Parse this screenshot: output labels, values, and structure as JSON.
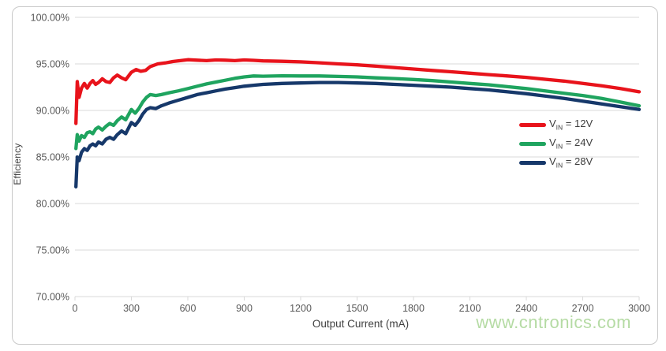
{
  "page": {
    "background": "#ffffff",
    "card_border_color": "#c9c9c9",
    "gridline_color": "#d9d9d9",
    "tick_label_color": "#595959",
    "axis_title_color": "#404040"
  },
  "watermark": {
    "text": "www.cntronics.com",
    "color": "#b5dba4"
  },
  "chart_data": {
    "type": "line",
    "title": "",
    "xlabel": "Output Current (mA)",
    "ylabel": "Efficiency",
    "xlim": [
      0,
      3000
    ],
    "ylim": [
      70,
      100
    ],
    "grid": "horizontal",
    "legend_position": "inside-right-middle",
    "x_ticks": [
      0,
      300,
      600,
      900,
      1200,
      1500,
      1800,
      2100,
      2400,
      2700,
      3000
    ],
    "x_tick_labels": [
      "0",
      "300",
      "600",
      "900",
      "1200",
      "1500",
      "1800",
      "2100",
      "2400",
      "2700",
      "3000"
    ],
    "y_ticks": [
      100,
      95,
      90,
      85,
      80,
      75,
      70
    ],
    "y_tick_labels": [
      "100.00%",
      "95.00%",
      "90.00%",
      "85.00%",
      "80.00%",
      "75.00%",
      "70.00%"
    ],
    "series": [
      {
        "name": "VIN = 12V",
        "legend_pre": "V",
        "legend_sub": "IN",
        "legend_post": " = 12V",
        "color": "#e8131b",
        "points": [
          [
            5,
            88.6
          ],
          [
            12,
            93.1
          ],
          [
            22,
            91.4
          ],
          [
            35,
            92.4
          ],
          [
            50,
            92.9
          ],
          [
            65,
            92.4
          ],
          [
            80,
            92.9
          ],
          [
            95,
            93.2
          ],
          [
            110,
            92.8
          ],
          [
            125,
            93.0
          ],
          [
            145,
            93.4
          ],
          [
            165,
            93.1
          ],
          [
            185,
            93.0
          ],
          [
            205,
            93.5
          ],
          [
            225,
            93.8
          ],
          [
            248,
            93.5
          ],
          [
            270,
            93.3
          ],
          [
            300,
            94.1
          ],
          [
            325,
            94.4
          ],
          [
            350,
            94.2
          ],
          [
            375,
            94.3
          ],
          [
            400,
            94.7
          ],
          [
            440,
            95.0
          ],
          [
            480,
            95.1
          ],
          [
            520,
            95.25
          ],
          [
            560,
            95.35
          ],
          [
            600,
            95.45
          ],
          [
            650,
            95.4
          ],
          [
            700,
            95.35
          ],
          [
            750,
            95.42
          ],
          [
            800,
            95.4
          ],
          [
            850,
            95.35
          ],
          [
            900,
            95.42
          ],
          [
            950,
            95.38
          ],
          [
            1000,
            95.32
          ],
          [
            1100,
            95.28
          ],
          [
            1200,
            95.22
          ],
          [
            1300,
            95.12
          ],
          [
            1400,
            95.0
          ],
          [
            1500,
            94.9
          ],
          [
            1600,
            94.75
          ],
          [
            1700,
            94.6
          ],
          [
            1800,
            94.45
          ],
          [
            1900,
            94.3
          ],
          [
            2000,
            94.15
          ],
          [
            2100,
            94.0
          ],
          [
            2200,
            93.85
          ],
          [
            2300,
            93.7
          ],
          [
            2400,
            93.55
          ],
          [
            2500,
            93.35
          ],
          [
            2600,
            93.15
          ],
          [
            2700,
            92.9
          ],
          [
            2800,
            92.65
          ],
          [
            2900,
            92.35
          ],
          [
            3000,
            92.0
          ]
        ]
      },
      {
        "name": "VIN = 24V",
        "legend_pre": "V",
        "legend_sub": "IN",
        "legend_post": " = 24V",
        "color": "#1fa45f",
        "points": [
          [
            5,
            85.9
          ],
          [
            12,
            87.4
          ],
          [
            22,
            86.7
          ],
          [
            35,
            87.3
          ],
          [
            50,
            87.1
          ],
          [
            65,
            87.6
          ],
          [
            80,
            87.7
          ],
          [
            95,
            87.5
          ],
          [
            110,
            88.0
          ],
          [
            125,
            88.2
          ],
          [
            145,
            87.9
          ],
          [
            165,
            88.3
          ],
          [
            185,
            88.6
          ],
          [
            205,
            88.4
          ],
          [
            225,
            88.9
          ],
          [
            248,
            89.3
          ],
          [
            270,
            89.0
          ],
          [
            300,
            90.1
          ],
          [
            320,
            89.7
          ],
          [
            340,
            90.2
          ],
          [
            360,
            90.9
          ],
          [
            380,
            91.4
          ],
          [
            400,
            91.7
          ],
          [
            430,
            91.6
          ],
          [
            460,
            91.7
          ],
          [
            500,
            91.9
          ],
          [
            550,
            92.1
          ],
          [
            600,
            92.35
          ],
          [
            650,
            92.6
          ],
          [
            700,
            92.85
          ],
          [
            750,
            93.05
          ],
          [
            800,
            93.25
          ],
          [
            850,
            93.45
          ],
          [
            900,
            93.6
          ],
          [
            950,
            93.7
          ],
          [
            1000,
            93.68
          ],
          [
            1100,
            93.72
          ],
          [
            1200,
            93.7
          ],
          [
            1300,
            93.7
          ],
          [
            1400,
            93.65
          ],
          [
            1500,
            93.6
          ],
          [
            1600,
            93.5
          ],
          [
            1700,
            93.42
          ],
          [
            1800,
            93.32
          ],
          [
            1900,
            93.2
          ],
          [
            2000,
            93.05
          ],
          [
            2100,
            92.9
          ],
          [
            2200,
            92.75
          ],
          [
            2300,
            92.55
          ],
          [
            2400,
            92.35
          ],
          [
            2500,
            92.1
          ],
          [
            2600,
            91.85
          ],
          [
            2700,
            91.6
          ],
          [
            2800,
            91.3
          ],
          [
            2900,
            90.9
          ],
          [
            3000,
            90.5
          ]
        ]
      },
      {
        "name": "VIN = 28V",
        "legend_pre": "V",
        "legend_sub": "IN",
        "legend_post": " = 28V",
        "color": "#16386a",
        "points": [
          [
            5,
            81.8
          ],
          [
            12,
            85.0
          ],
          [
            22,
            84.6
          ],
          [
            35,
            85.5
          ],
          [
            50,
            85.9
          ],
          [
            65,
            85.7
          ],
          [
            80,
            86.2
          ],
          [
            95,
            86.4
          ],
          [
            110,
            86.2
          ],
          [
            125,
            86.6
          ],
          [
            145,
            86.4
          ],
          [
            165,
            86.9
          ],
          [
            185,
            87.1
          ],
          [
            205,
            86.9
          ],
          [
            225,
            87.4
          ],
          [
            248,
            87.8
          ],
          [
            270,
            87.5
          ],
          [
            300,
            88.7
          ],
          [
            320,
            88.4
          ],
          [
            340,
            88.9
          ],
          [
            360,
            89.6
          ],
          [
            380,
            90.1
          ],
          [
            400,
            90.3
          ],
          [
            430,
            90.2
          ],
          [
            460,
            90.5
          ],
          [
            500,
            90.8
          ],
          [
            550,
            91.1
          ],
          [
            600,
            91.4
          ],
          [
            650,
            91.7
          ],
          [
            700,
            91.9
          ],
          [
            750,
            92.1
          ],
          [
            800,
            92.3
          ],
          [
            850,
            92.45
          ],
          [
            900,
            92.6
          ],
          [
            950,
            92.7
          ],
          [
            1000,
            92.8
          ],
          [
            1100,
            92.9
          ],
          [
            1200,
            92.95
          ],
          [
            1300,
            93.0
          ],
          [
            1400,
            93.0
          ],
          [
            1500,
            92.95
          ],
          [
            1600,
            92.9
          ],
          [
            1700,
            92.8
          ],
          [
            1800,
            92.7
          ],
          [
            1900,
            92.6
          ],
          [
            2000,
            92.5
          ],
          [
            2100,
            92.35
          ],
          [
            2200,
            92.2
          ],
          [
            2300,
            92.0
          ],
          [
            2400,
            91.8
          ],
          [
            2500,
            91.55
          ],
          [
            2600,
            91.3
          ],
          [
            2700,
            91.0
          ],
          [
            2800,
            90.7
          ],
          [
            2900,
            90.4
          ],
          [
            3000,
            90.1
          ]
        ]
      }
    ]
  }
}
